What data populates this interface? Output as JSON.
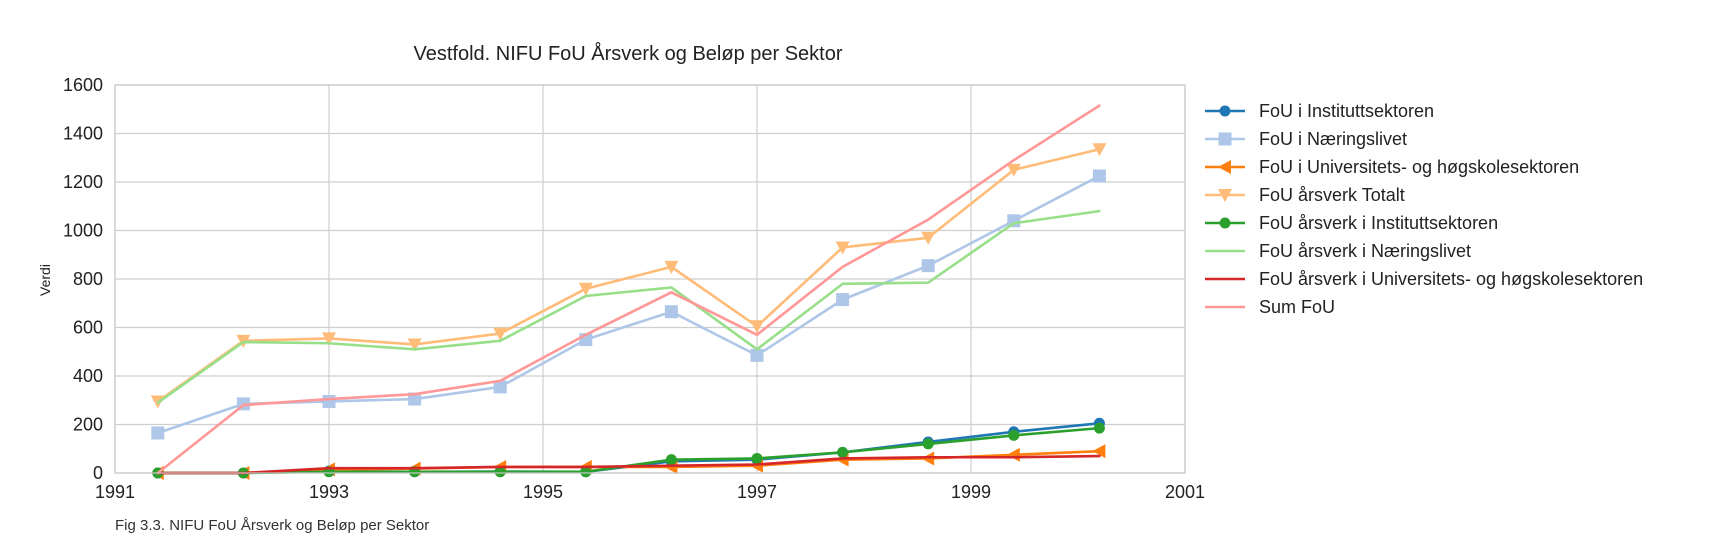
{
  "chart_data": {
    "type": "line",
    "title": "Vestfold. NIFU FoU Årsverk og Beløp per Sektor",
    "xlabel": "",
    "ylabel": "Verdi",
    "caption": "Fig 3.3. NIFU FoU Årsverk og Beløp per Sektor",
    "xlim": [
      1991,
      2001
    ],
    "ylim": [
      0,
      1600
    ],
    "xticks": [
      1991,
      1993,
      1995,
      1997,
      1999,
      2001
    ],
    "yticks": [
      0,
      200,
      400,
      600,
      800,
      1000,
      1200,
      1400,
      1600
    ],
    "grid": true,
    "legend_position": "right",
    "x": [
      1991.4,
      1992.2,
      1993.0,
      1993.8,
      1994.6,
      1995.4,
      1996.2,
      1997.0,
      1997.8,
      1998.6,
      1999.4,
      2000.2
    ],
    "series": [
      {
        "name": "FoU i Instituttsektoren",
        "color": "#1f77b4",
        "marker": "circle",
        "values": [
          0,
          0,
          8,
          5,
          6,
          5,
          48,
          55,
          85,
          128,
          170,
          205
        ]
      },
      {
        "name": "FoU i Næringslivet",
        "color": "#aec7e8",
        "marker": "square",
        "values": [
          165,
          285,
          295,
          305,
          355,
          550,
          665,
          485,
          715,
          855,
          1040,
          1225
        ]
      },
      {
        "name": "FoU i Universitets- og høgskolesektoren",
        "color": "#ff7f0e",
        "marker": "triangle-left",
        "values": [
          0,
          0,
          15,
          18,
          25,
          25,
          25,
          30,
          55,
          60,
          75,
          90
        ]
      },
      {
        "name": "FoU årsverk Totalt",
        "color": "#ffbb78",
        "marker": "triangle-down",
        "values": [
          295,
          545,
          555,
          530,
          575,
          760,
          850,
          605,
          930,
          970,
          1250,
          1335
        ]
      },
      {
        "name": "FoU årsverk i Instituttsektoren",
        "color": "#2ca02c",
        "marker": "circle",
        "values": [
          0,
          0,
          5,
          5,
          5,
          5,
          55,
          60,
          85,
          120,
          155,
          185
        ]
      },
      {
        "name": "FoU årsverk i Næringslivet",
        "color": "#98df8a",
        "marker": "none",
        "values": [
          290,
          540,
          535,
          510,
          545,
          730,
          765,
          510,
          780,
          785,
          1030,
          1080
        ]
      },
      {
        "name": "FoU årsverk i Universitets- og høgskolesektoren",
        "color": "#d62728",
        "marker": "none",
        "values": [
          0,
          0,
          20,
          20,
          25,
          25,
          30,
          35,
          60,
          65,
          65,
          70
        ]
      },
      {
        "name": "Sum FoU",
        "color": "#ff9896",
        "marker": "none",
        "values": [
          0,
          280,
          305,
          325,
          380,
          570,
          745,
          570,
          850,
          1045,
          1290,
          1515
        ]
      }
    ]
  }
}
